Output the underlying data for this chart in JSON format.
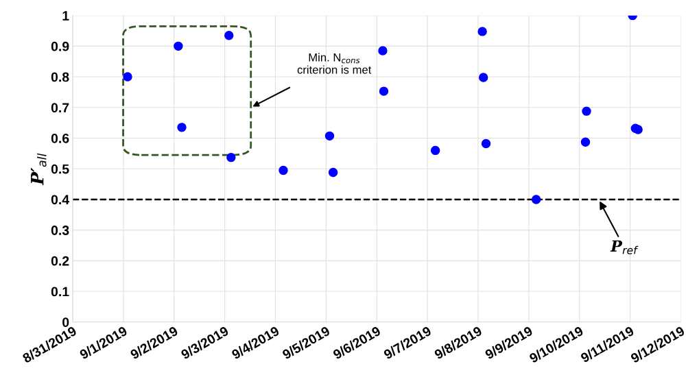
{
  "chart_data": {
    "type": "scatter",
    "ylabel": "P′$_{all}$",
    "color": "#0000ff",
    "marker": "circle",
    "x": [
      "2019-09-01T02:00",
      "2019-09-02T02:00",
      "2019-09-02T03:40",
      "2019-09-03T02:00",
      "2019-09-03T03:00",
      "2019-09-04T03:45",
      "2019-09-05T01:40",
      "2019-09-05T03:20",
      "2019-09-06T02:50",
      "2019-09-06T03:20",
      "2019-09-07T03:45",
      "2019-09-08T02:00",
      "2019-09-08T02:30",
      "2019-09-08T03:45",
      "2019-09-09T03:30",
      "2019-09-10T02:50",
      "2019-09-10T03:20",
      "2019-09-11T01:10",
      "2019-09-11T02:30",
      "2019-09-11T03:45"
    ],
    "values": [
      0.8,
      0.9,
      0.635,
      0.935,
      0.537,
      0.495,
      0.607,
      0.488,
      0.885,
      0.753,
      0.56,
      0.948,
      0.798,
      0.582,
      0.4,
      0.587,
      0.688,
      1.0,
      0.632,
      0.628
    ],
    "xlim": [
      "2019-08-31",
      "2019-09-12"
    ],
    "xticks": [
      {
        "value": "2019-08-31",
        "label": "8/31/2019"
      },
      {
        "value": "2019-09-01",
        "label": "9/1/2019"
      },
      {
        "value": "2019-09-02",
        "label": "9/2/2019"
      },
      {
        "value": "2019-09-03",
        "label": "9/3/2019"
      },
      {
        "value": "2019-09-04",
        "label": "9/4/2019"
      },
      {
        "value": "2019-09-05",
        "label": "9/5/2019"
      },
      {
        "value": "2019-09-06",
        "label": "9/6/2019"
      },
      {
        "value": "2019-09-07",
        "label": "9/7/2019"
      },
      {
        "value": "2019-09-08",
        "label": "9/8/2019"
      },
      {
        "value": "2019-09-09",
        "label": "9/9/2019"
      },
      {
        "value": "2019-09-10",
        "label": "9/10/2019"
      },
      {
        "value": "2019-09-11",
        "label": "9/11/2019"
      },
      {
        "value": "2019-09-12",
        "label": "9/12/2019"
      }
    ],
    "ylim": [
      0,
      1
    ],
    "yticks": [
      0,
      0.1,
      0.2,
      0.3,
      0.4,
      0.5,
      0.6,
      0.7,
      0.8,
      0.9,
      1
    ],
    "grid": true,
    "ref_lines": [
      {
        "axis": "y",
        "value": 0.4,
        "label": "P$_{ref}$",
        "color": "#000000",
        "line_style": "dashed"
      }
    ],
    "annotations": [
      "Min. N$_{cons}$\ncriterion is met"
    ]
  }
}
